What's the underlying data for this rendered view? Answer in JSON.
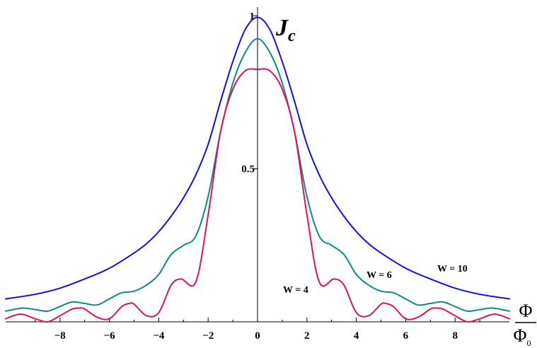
{
  "chart_data": {
    "type": "line",
    "title": "",
    "ylabel": {
      "main": "J",
      "sub": "c"
    },
    "xlabel": {
      "numerator": "Φ",
      "denominator": "Φ",
      "denominator_sub": "0"
    },
    "xlim": [
      -10.2,
      10.2
    ],
    "ylim": [
      0,
      1.01
    ],
    "xticks": [
      -8,
      -6,
      -4,
      -2,
      0,
      2,
      4,
      6,
      8
    ],
    "xtick_labels": [
      "−8",
      "−6",
      "−4",
      "−2",
      "0",
      "2",
      "4",
      "6",
      "8"
    ],
    "yticks": [
      0.5,
      1
    ],
    "ytick_labels": [
      "0.5",
      "1"
    ],
    "grid": false,
    "legend": "none",
    "series": [
      {
        "name": "W = 10",
        "color": "#1010e0",
        "x": [
          -10.2,
          -9,
          -8,
          -7,
          -6,
          -5,
          -4.5,
          -4,
          -3.5,
          -3,
          -2.5,
          -2,
          -1.5,
          -1,
          -0.5,
          0,
          0.5,
          1,
          1.5,
          2,
          2.5,
          3,
          3.5,
          4,
          4.5,
          5,
          6,
          7,
          8,
          9,
          10.2
        ],
        "y": [
          0.075,
          0.09,
          0.11,
          0.14,
          0.175,
          0.225,
          0.255,
          0.295,
          0.345,
          0.405,
          0.48,
          0.58,
          0.72,
          0.85,
          0.955,
          0.995,
          0.955,
          0.85,
          0.72,
          0.58,
          0.48,
          0.405,
          0.345,
          0.295,
          0.255,
          0.225,
          0.175,
          0.14,
          0.11,
          0.09,
          0.075
        ]
      },
      {
        "name": "W = 6",
        "color": "#108888",
        "x": [
          -10.2,
          -9.5,
          -9,
          -8.5,
          -8,
          -7.5,
          -7,
          -6.5,
          -6,
          -5.5,
          -5,
          -4.5,
          -4,
          -3.5,
          -3,
          -2.5,
          -2,
          -1.5,
          -1,
          -0.5,
          0,
          0.5,
          1,
          1.5,
          2,
          2.5,
          3,
          3.5,
          4,
          4.5,
          5,
          5.5,
          6,
          6.5,
          7,
          7.5,
          8,
          8.5,
          9,
          9.5,
          10.2
        ],
        "y": [
          0.035,
          0.045,
          0.04,
          0.035,
          0.05,
          0.065,
          0.06,
          0.055,
          0.075,
          0.095,
          0.1,
          0.12,
          0.155,
          0.22,
          0.25,
          0.28,
          0.41,
          0.62,
          0.78,
          0.88,
          0.925,
          0.88,
          0.78,
          0.62,
          0.41,
          0.28,
          0.25,
          0.22,
          0.155,
          0.12,
          0.1,
          0.095,
          0.075,
          0.055,
          0.06,
          0.065,
          0.05,
          0.035,
          0.04,
          0.045,
          0.035
        ]
      },
      {
        "name": "W = 4",
        "color": "#e01060",
        "x": [
          -10.2,
          -9.6,
          -9,
          -8.5,
          -8,
          -7.5,
          -7.2,
          -7,
          -6.5,
          -6,
          -5.5,
          -5.2,
          -5,
          -4.5,
          -4,
          -3.5,
          -3.1,
          -2.5,
          -2,
          -1.5,
          -1,
          -0.5,
          0,
          0.5,
          1,
          1.5,
          2,
          2.5,
          3.1,
          3.5,
          4,
          4.5,
          5,
          5.2,
          5.5,
          6,
          6.5,
          7,
          7.2,
          7.5,
          8,
          8.5,
          9,
          9.6,
          10.2
        ],
        "y": [
          0.01,
          0.025,
          0.01,
          0.0,
          0.02,
          0.042,
          0.045,
          0.042,
          0.015,
          0.01,
          0.05,
          0.06,
          0.058,
          0.02,
          0.03,
          0.12,
          0.14,
          0.13,
          0.35,
          0.62,
          0.76,
          0.82,
          0.825,
          0.82,
          0.76,
          0.62,
          0.35,
          0.13,
          0.14,
          0.12,
          0.03,
          0.02,
          0.058,
          0.06,
          0.05,
          0.01,
          0.015,
          0.042,
          0.045,
          0.042,
          0.02,
          0.0,
          0.01,
          0.025,
          0.01
        ]
      }
    ]
  }
}
